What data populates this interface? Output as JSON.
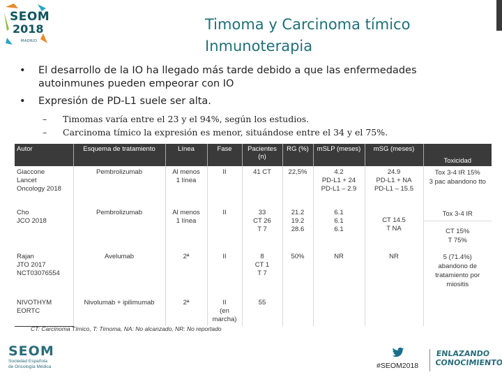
{
  "logo": {
    "name": "SEOM",
    "year": "2018",
    "city": "MADRID"
  },
  "title": {
    "line1": "Timoma y Carcinoma tímico",
    "line2": "Inmunoterapia"
  },
  "bullets": [
    "El desarrollo de la IO ha llegado más tarde debido a que las  enfermedades autoinmunes pueden empeorar con IO",
    "Expresión de PD-L1 suele ser alta."
  ],
  "sub_bullets": [
    "Timomas varía entre el 23 y el 94%, según los estudios.",
    "Carcinoma tímico la expresión es menor, situándose entre el 34 y el 75%."
  ],
  "table": {
    "headers": [
      "Autor",
      "Esquema de tratamiento",
      "Línea",
      "Fase",
      "Pacientes (n)",
      "RG (%)",
      "mSLP (meses)",
      "mSG (meses)",
      "Toxicidad"
    ],
    "rows": [
      {
        "autor": "Giaccone\nLancet\nOncology 2018",
        "esquema": "Pembrolizumab",
        "linea": "Al menos\n1 línea",
        "fase": "II",
        "pacientes": "41 CT",
        "rg": "22,5%",
        "slp": "4.2\nPD-L1 + 24\nPD-L1 – 2.9",
        "sg": "24.9\nPD-L1 + NA\nPD-L1 – 15.5",
        "tox": "Tox 3-4 IR 15%\n3 pac abandono tto"
      },
      {
        "autor": "Cho\nJCO 2018",
        "esquema": "Pembrolizumab",
        "linea": "Al menos\n1 línea",
        "fase": "II",
        "pacientes": "33\nCT 26\nT 7",
        "rg": "21.2\n19.2\n28.6",
        "slp": "6.1\n6.1\n6.1",
        "sg": "CT 14.5\nT NA",
        "tox_top": "Tox 3-4 IR",
        "tox_bottom": "CT 15%\nT 75%"
      },
      {
        "autor": "Rajan\nJTO 2017\nNCT03076554",
        "esquema": "Avelumab",
        "linea": "2ª",
        "fase": "II",
        "pacientes": "8\nCT 1\nT 7",
        "rg": "50%",
        "slp": "NR",
        "sg": "NR",
        "tox": "5 (71.4%)\nabandono de\ntratamiento por\nmiositis"
      },
      {
        "autor": "NIVOTHYM\nEORTC",
        "esquema": "Nivolumab + ipilimumab",
        "linea": "2ª",
        "fase": "II\n(en marcha)",
        "pacientes": "55",
        "rg": "",
        "slp": "",
        "sg": "",
        "tox": ""
      }
    ]
  },
  "footnote": "CT: Carcinoma Tímico, T: Timoma, NA: No alcanzado, NR: No reportado",
  "footer": {
    "seom": "SEOM",
    "seom_sub1": "Sociedad Española",
    "seom_sub2": "de Oncología Médica",
    "hashtag": "#SEOM2018",
    "tagline1": "ENLAZANDO",
    "tagline2": "CONOCIMIENTO"
  },
  "colors": {
    "teal": "#1f6f78",
    "header_bg": "#3a3a3a",
    "logo_orange": "#e8892a",
    "logo_green": "#8bbf3f"
  }
}
